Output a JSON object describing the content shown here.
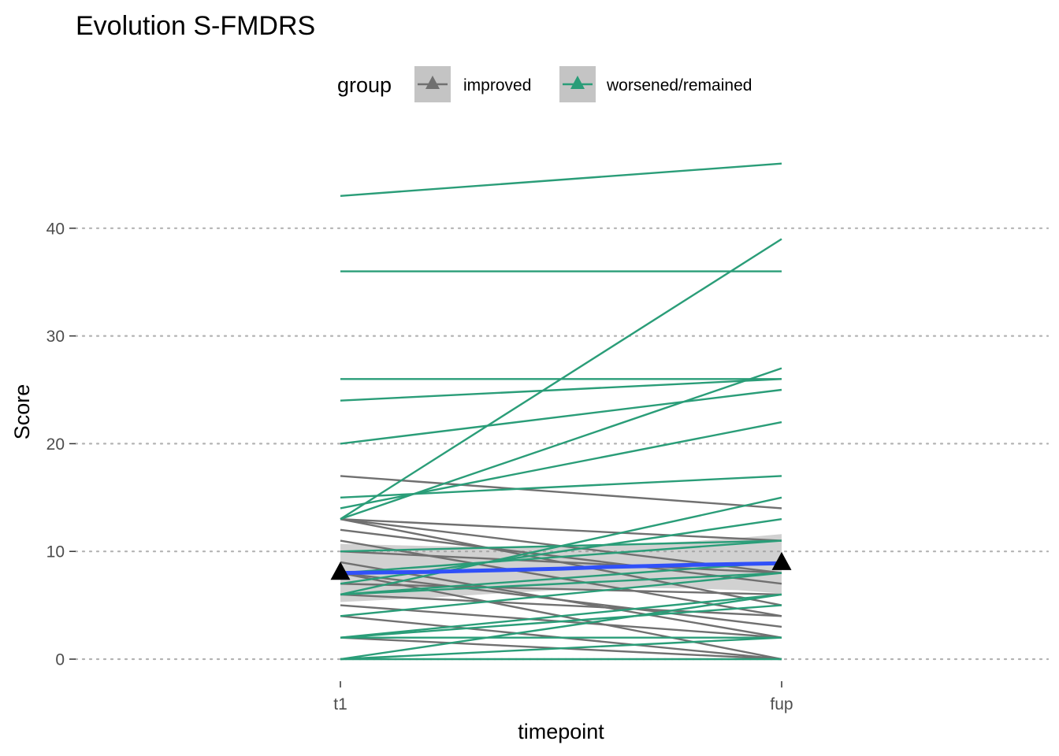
{
  "chart_data": {
    "type": "line",
    "title": "Evolution S-FMDRS",
    "xlabel": "timepoint",
    "ylabel": "Score",
    "categories": [
      "t1",
      "fup"
    ],
    "yticks": [
      0,
      10,
      20,
      30,
      40
    ],
    "ylim": [
      -3,
      47.5
    ],
    "grid": "horizontal dotted",
    "legend": {
      "title": "group",
      "position": "top",
      "entries": [
        {
          "label": "improved",
          "color": "#707070"
        },
        {
          "label": "worsened/remained",
          "color": "#2a9d78"
        }
      ]
    },
    "series": [
      {
        "group": "worsened/remained",
        "values": [
          43,
          46
        ]
      },
      {
        "group": "worsened/remained",
        "values": [
          36,
          36
        ]
      },
      {
        "group": "worsened/remained",
        "values": [
          26,
          26
        ]
      },
      {
        "group": "worsened/remained",
        "values": [
          24,
          26
        ]
      },
      {
        "group": "worsened/remained",
        "values": [
          20,
          25
        ]
      },
      {
        "group": "worsened/remained",
        "values": [
          15,
          17
        ]
      },
      {
        "group": "worsened/remained",
        "values": [
          14,
          22
        ]
      },
      {
        "group": "worsened/remained",
        "values": [
          13,
          39
        ]
      },
      {
        "group": "worsened/remained",
        "values": [
          13,
          27
        ]
      },
      {
        "group": "worsened/remained",
        "values": [
          10,
          11
        ]
      },
      {
        "group": "worsened/remained",
        "values": [
          8,
          11
        ]
      },
      {
        "group": "worsened/remained",
        "values": [
          7,
          13
        ]
      },
      {
        "group": "worsened/remained",
        "values": [
          6,
          15
        ]
      },
      {
        "group": "worsened/remained",
        "values": [
          6,
          9
        ]
      },
      {
        "group": "worsened/remained",
        "values": [
          6,
          8
        ]
      },
      {
        "group": "worsened/remained",
        "values": [
          4,
          8
        ]
      },
      {
        "group": "worsened/remained",
        "values": [
          2,
          6
        ]
      },
      {
        "group": "worsened/remained",
        "values": [
          2,
          5
        ]
      },
      {
        "group": "worsened/remained",
        "values": [
          2,
          2
        ]
      },
      {
        "group": "worsened/remained",
        "values": [
          0,
          6
        ]
      },
      {
        "group": "worsened/remained",
        "values": [
          0,
          2
        ]
      },
      {
        "group": "worsened/remained",
        "values": [
          0,
          0
        ]
      },
      {
        "group": "improved",
        "values": [
          17,
          14
        ]
      },
      {
        "group": "improved",
        "values": [
          13,
          11
        ]
      },
      {
        "group": "improved",
        "values": [
          13,
          8
        ]
      },
      {
        "group": "improved",
        "values": [
          13,
          5
        ]
      },
      {
        "group": "improved",
        "values": [
          12,
          7
        ]
      },
      {
        "group": "improved",
        "values": [
          11,
          4
        ]
      },
      {
        "group": "improved",
        "values": [
          10,
          8
        ]
      },
      {
        "group": "improved",
        "values": [
          9,
          2
        ]
      },
      {
        "group": "improved",
        "values": [
          8,
          3
        ]
      },
      {
        "group": "improved",
        "values": [
          8,
          0
        ]
      },
      {
        "group": "improved",
        "values": [
          7,
          6
        ]
      },
      {
        "group": "improved",
        "values": [
          6,
          4
        ]
      },
      {
        "group": "improved",
        "values": [
          5,
          2
        ]
      },
      {
        "group": "improved",
        "values": [
          4,
          0
        ]
      },
      {
        "group": "improved",
        "values": [
          2,
          0
        ]
      }
    ],
    "mean": {
      "color": "#3050f8",
      "x": [
        0,
        0.1,
        0.2,
        0.3,
        0.4,
        0.5,
        0.6,
        0.7,
        0.8,
        0.9,
        1
      ],
      "y": [
        8.0,
        8.05,
        8.1,
        8.2,
        8.3,
        8.4,
        8.55,
        8.65,
        8.75,
        8.82,
        8.9
      ],
      "ci_lower": [
        5.3,
        5.5,
        5.7,
        5.95,
        6.2,
        6.4,
        6.55,
        6.6,
        6.55,
        6.4,
        6.1
      ],
      "ci_upper": [
        10.7,
        10.6,
        10.5,
        10.45,
        10.45,
        10.5,
        10.6,
        10.75,
        10.95,
        11.25,
        11.6
      ],
      "markers": [
        8.1,
        9.0
      ]
    }
  }
}
